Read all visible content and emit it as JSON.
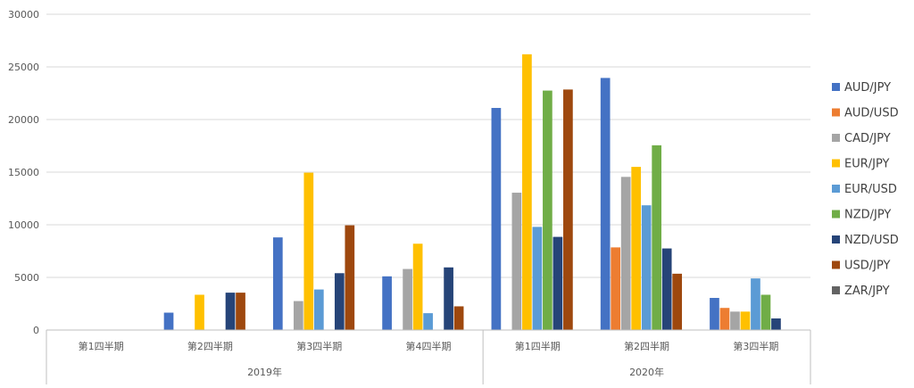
{
  "chart_data": {
    "type": "bar",
    "colors": {
      "AUD/JPY": "#4472c4",
      "AUD/USD": "#ed7d31",
      "CAD/JPY": "#a5a5a5",
      "EUR/JPY": "#ffc000",
      "EUR/USD": "#5b9bd5",
      "NZD/JPY": "#70ad47",
      "NZD/USD": "#264478",
      "USD/JPY": "#9e480e",
      "ZAR/JPY": "#636363"
    },
    "groups": [
      {
        "label": "2019年",
        "categories": [
          "第1四半期",
          "第2四半期",
          "第3四半期",
          "第4四半期"
        ]
      },
      {
        "label": "2020年",
        "categories": [
          "第1四半期",
          "第2四半期",
          "第3四半期"
        ]
      }
    ],
    "series": [
      {
        "name": "AUD/JPY",
        "values": [
          0,
          1650,
          8800,
          5100,
          21100,
          23950,
          3050
        ]
      },
      {
        "name": "AUD/USD",
        "values": [
          0,
          0,
          0,
          0,
          0,
          7850,
          2100
        ]
      },
      {
        "name": "CAD/JPY",
        "values": [
          0,
          0,
          2750,
          5800,
          13050,
          14550,
          1750
        ]
      },
      {
        "name": "EUR/JPY",
        "values": [
          0,
          3350,
          14950,
          8200,
          26200,
          15500,
          1750
        ]
      },
      {
        "name": "EUR/USD",
        "values": [
          0,
          0,
          3850,
          1600,
          9800,
          11850,
          4900
        ]
      },
      {
        "name": "NZD/JPY",
        "values": [
          0,
          0,
          0,
          0,
          22750,
          17550,
          3350
        ]
      },
      {
        "name": "NZD/USD",
        "values": [
          0,
          3550,
          5400,
          5950,
          8850,
          7750,
          1100
        ]
      },
      {
        "name": "USD/JPY",
        "values": [
          0,
          3550,
          9950,
          2250,
          22850,
          5350,
          0
        ]
      },
      {
        "name": "ZAR/JPY",
        "values": [
          0,
          0,
          0,
          0,
          0,
          0,
          0
        ]
      }
    ],
    "ylim": [
      0,
      30000
    ],
    "yticks": [
      0,
      5000,
      10000,
      15000,
      20000,
      25000,
      30000
    ],
    "grid": true,
    "legend": "right"
  }
}
